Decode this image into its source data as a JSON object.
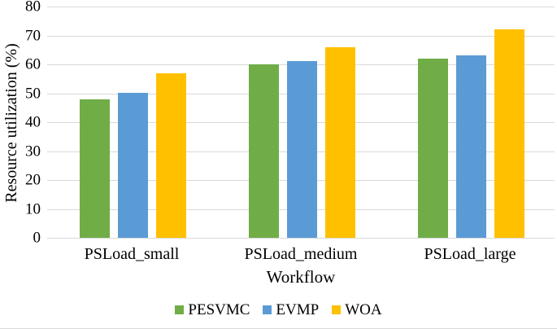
{
  "chart_data": {
    "type": "bar",
    "title": "",
    "categories": [
      "PSLoad_small",
      "PSLoad_medium",
      "PSLoad_large"
    ],
    "series": [
      {
        "name": "PESVMC",
        "color": "#70AD47",
        "values": [
          48,
          60,
          62
        ]
      },
      {
        "name": "EVMP",
        "color": "#5B9BD5",
        "values": [
          50,
          61,
          63
        ]
      },
      {
        "name": "WOA",
        "color": "#FFC000",
        "values": [
          57,
          66,
          72
        ]
      }
    ],
    "xlabel": "Workflow",
    "ylabel": "Resource utilization (%)",
    "ylim": [
      0,
      80
    ],
    "yticks": [
      0,
      10,
      20,
      30,
      40,
      50,
      60,
      70,
      80
    ],
    "grid": "horizontal",
    "gridline_color": "#D9D9D9",
    "figure_border_color": "#D9D9D9",
    "text_color": "#000000",
    "legend_position": "bottom"
  }
}
